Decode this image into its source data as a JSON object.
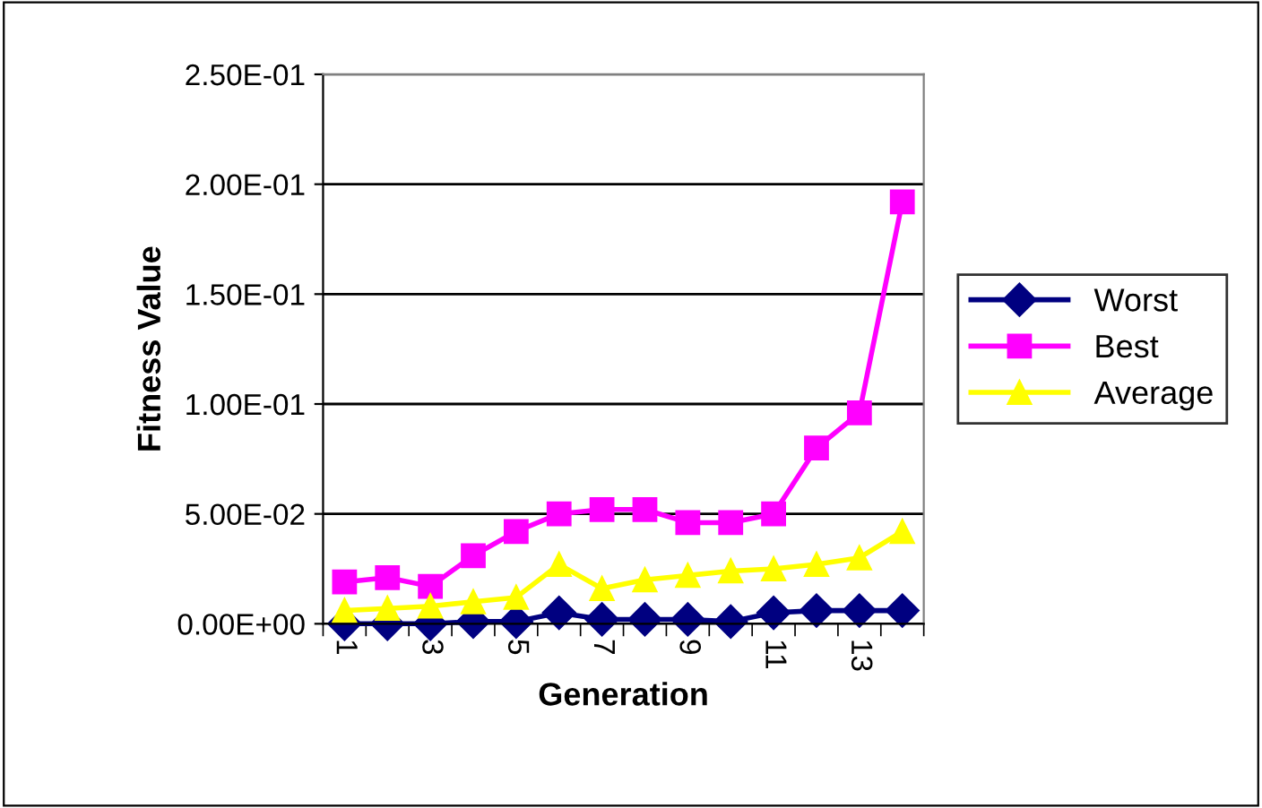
{
  "chart_data": {
    "type": "line",
    "xlabel": "Generation",
    "ylabel": "Fitness Value",
    "categories": [
      "1",
      null,
      "3",
      null,
      "5",
      null,
      "7",
      null,
      "9",
      null,
      "11",
      null,
      "13",
      null
    ],
    "series": [
      {
        "name": "Worst",
        "color": "#000080",
        "marker": "diamond",
        "values": [
          0,
          0,
          0,
          0.001,
          0.001,
          0.005,
          0.002,
          0.002,
          0.002,
          0.001,
          0.005,
          0.006,
          0.006,
          0.006
        ]
      },
      {
        "name": "Best",
        "color": "#ff00ff",
        "marker": "square",
        "values": [
          0.019,
          0.021,
          0.017,
          0.031,
          0.042,
          0.05,
          0.052,
          0.052,
          0.046,
          0.046,
          0.05,
          0.08,
          0.096,
          0.192
        ]
      },
      {
        "name": "Average",
        "color": "#ffff00",
        "marker": "triangle",
        "values": [
          0.006,
          0.007,
          0.008,
          0.01,
          0.012,
          0.027,
          0.016,
          0.02,
          0.022,
          0.024,
          0.025,
          0.027,
          0.03,
          0.042
        ]
      }
    ],
    "ylim": [
      0,
      0.25
    ],
    "yticks": [
      {
        "value": 0,
        "label": "0.00E+00"
      },
      {
        "value": 0.05,
        "label": "5.00E-02"
      },
      {
        "value": 0.1,
        "label": "1.00E-01"
      },
      {
        "value": 0.15,
        "label": "1.50E-01"
      },
      {
        "value": 0.2,
        "label": "2.00E-01"
      },
      {
        "value": 0.25,
        "label": "2.50E-01"
      }
    ],
    "grid": "y",
    "legend": "right"
  }
}
